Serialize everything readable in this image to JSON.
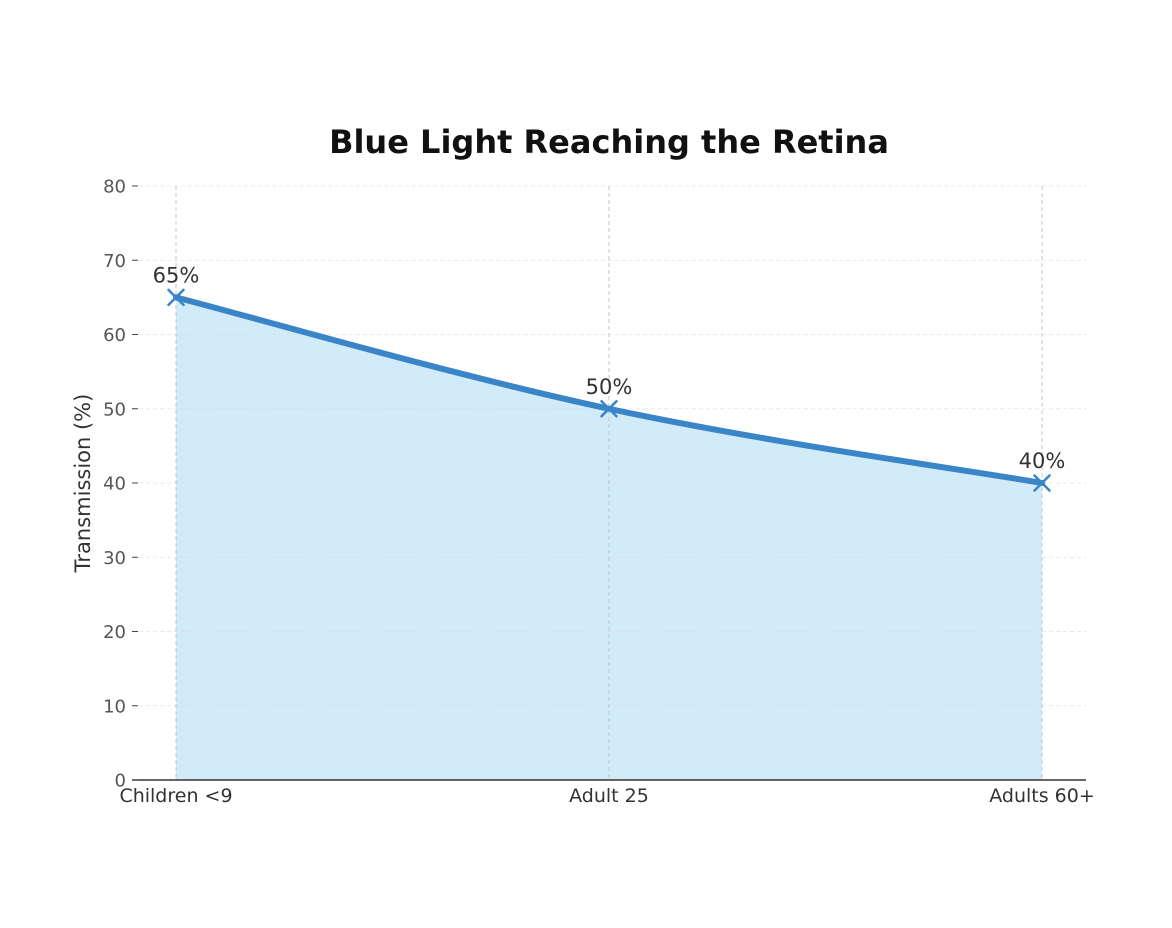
{
  "chart_data": {
    "type": "area",
    "title": "Blue Light Reaching the Retina",
    "xlabel": "",
    "ylabel": "Transmission (%)",
    "categories": [
      "Children <9",
      "Adult 25",
      "Adults 60+"
    ],
    "values": [
      65,
      50,
      40
    ],
    "data_labels": [
      "65%",
      "50%",
      "40%"
    ],
    "ylim": [
      0,
      80
    ],
    "yticks": [
      0,
      10,
      20,
      30,
      40,
      50,
      60,
      70,
      80
    ],
    "ytick_labels": [
      "0",
      "10",
      "20",
      "30",
      "40",
      "50",
      "60",
      "70",
      "80"
    ],
    "grid": true,
    "legend": "none",
    "marker": "x",
    "line_color": "#3a85c8",
    "fill_color": "#d2ebf8"
  }
}
